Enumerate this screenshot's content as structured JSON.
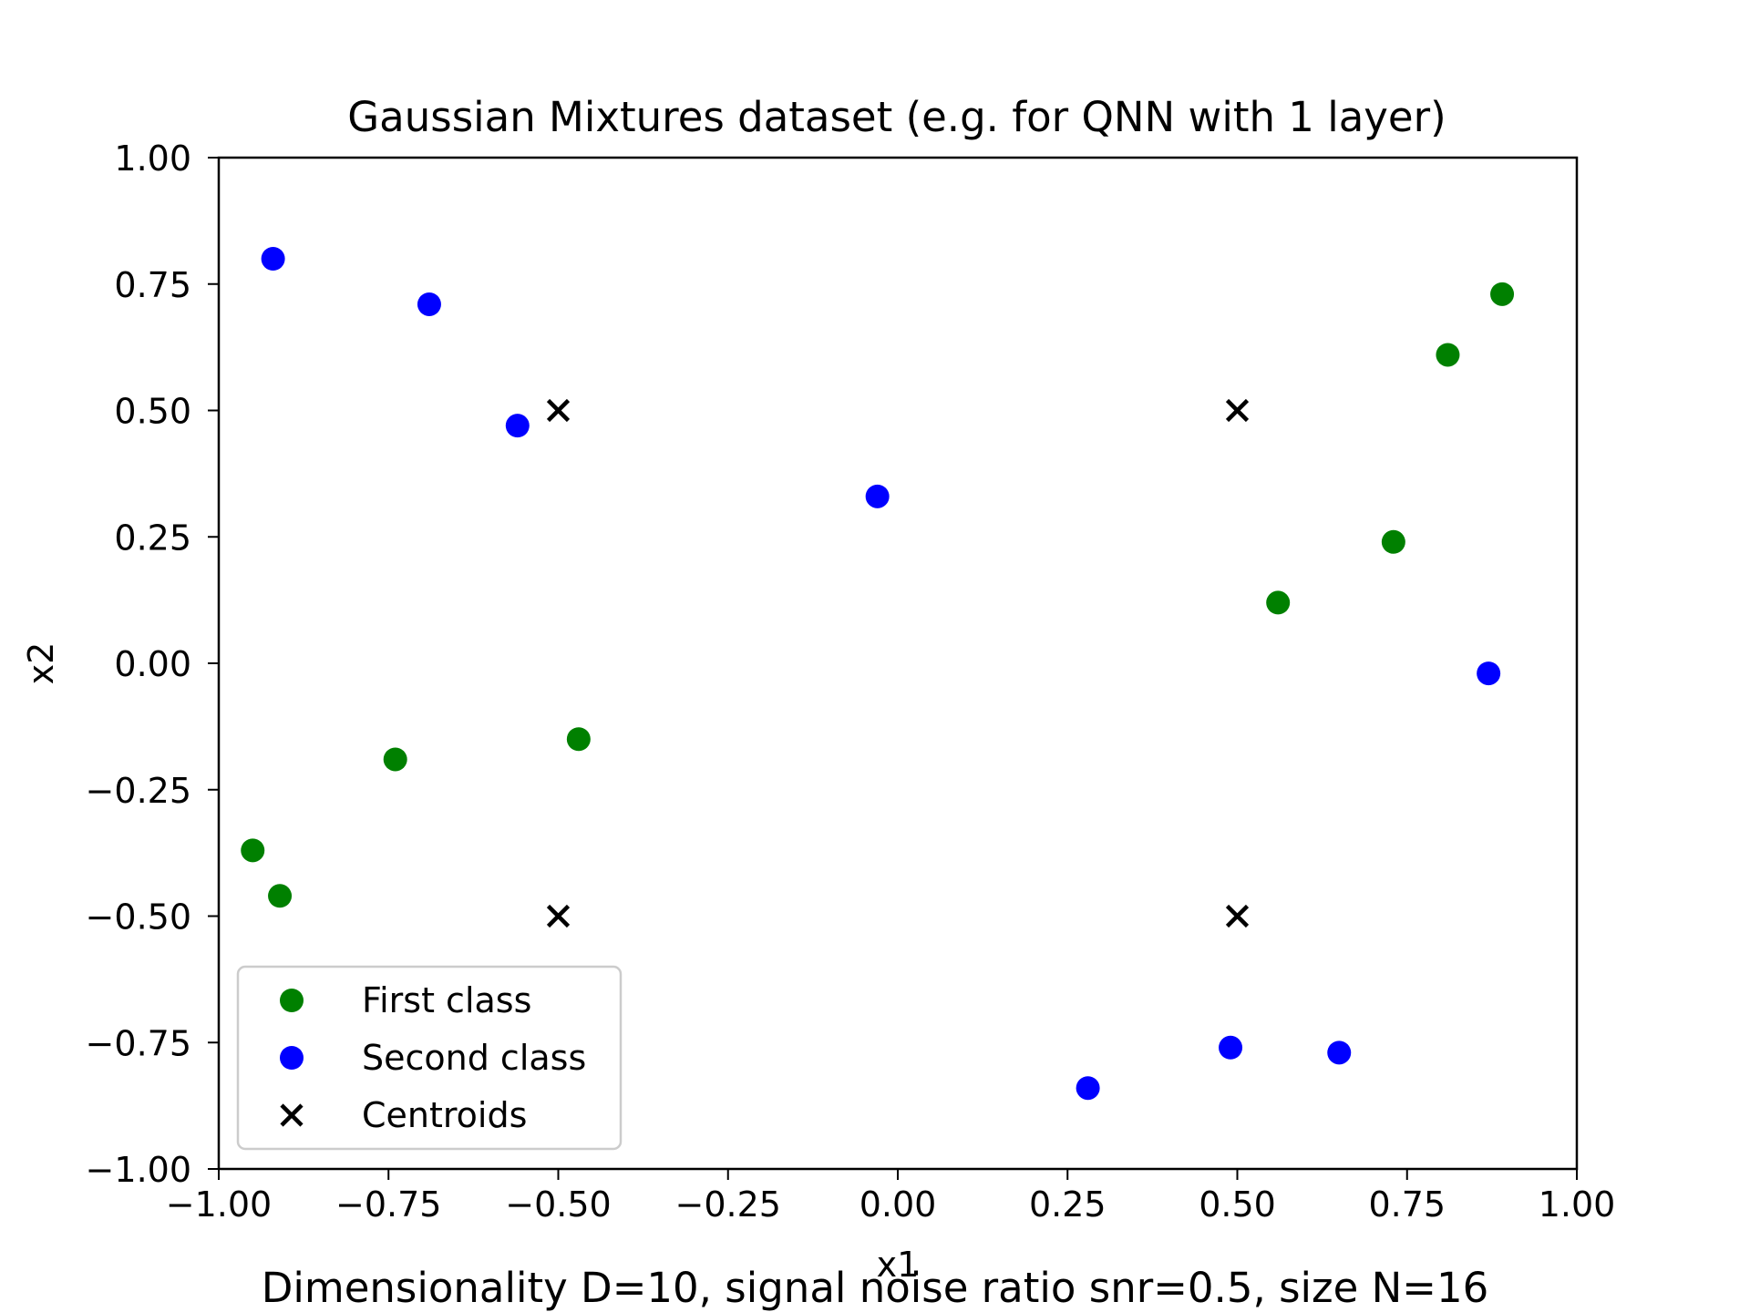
{
  "chart_data": {
    "type": "scatter",
    "title": "Gaussian Mixtures dataset (e.g. for QNN with 1 layer)",
    "xlabel": "x1",
    "ylabel": "x2",
    "caption": "Dimensionality D=10, signal noise ratio snr=0.5, size N=16",
    "xlim": [
      -1.0,
      1.0
    ],
    "ylim": [
      -1.0,
      1.0
    ],
    "xticks": [
      -1.0,
      -0.75,
      -0.5,
      -0.25,
      0.0,
      0.25,
      0.5,
      0.75,
      1.0
    ],
    "yticks": [
      -1.0,
      -0.75,
      -0.5,
      -0.25,
      0.0,
      0.25,
      0.5,
      0.75,
      1.0
    ],
    "xtick_labels": [
      "−1.00",
      "−0.75",
      "−0.50",
      "−0.25",
      "0.00",
      "0.25",
      "0.50",
      "0.75",
      "1.00"
    ],
    "ytick_labels": [
      "−1.00",
      "−0.75",
      "−0.50",
      "−0.25",
      "0.00",
      "0.25",
      "0.50",
      "0.75",
      "1.00"
    ],
    "grid": false,
    "legend_position": "lower-left",
    "series": [
      {
        "name": "First class",
        "marker": "circle",
        "color": "#008000",
        "points": [
          {
            "x": -0.95,
            "y": -0.37
          },
          {
            "x": -0.91,
            "y": -0.46
          },
          {
            "x": -0.74,
            "y": -0.19
          },
          {
            "x": -0.47,
            "y": -0.15
          },
          {
            "x": 0.56,
            "y": 0.12
          },
          {
            "x": 0.73,
            "y": 0.24
          },
          {
            "x": 0.81,
            "y": 0.61
          },
          {
            "x": 0.89,
            "y": 0.73
          }
        ]
      },
      {
        "name": "Second class",
        "marker": "circle",
        "color": "#0000ff",
        "points": [
          {
            "x": -0.92,
            "y": 0.8
          },
          {
            "x": -0.69,
            "y": 0.71
          },
          {
            "x": -0.56,
            "y": 0.47
          },
          {
            "x": -0.03,
            "y": 0.33
          },
          {
            "x": 0.28,
            "y": -0.84
          },
          {
            "x": 0.49,
            "y": -0.76
          },
          {
            "x": 0.65,
            "y": -0.77
          },
          {
            "x": 0.87,
            "y": -0.02
          }
        ]
      },
      {
        "name": "Centroids",
        "marker": "x",
        "color": "#000000",
        "points": [
          {
            "x": -0.5,
            "y": 0.5
          },
          {
            "x": 0.5,
            "y": 0.5
          },
          {
            "x": -0.5,
            "y": -0.5
          },
          {
            "x": 0.5,
            "y": -0.5
          }
        ]
      }
    ]
  }
}
